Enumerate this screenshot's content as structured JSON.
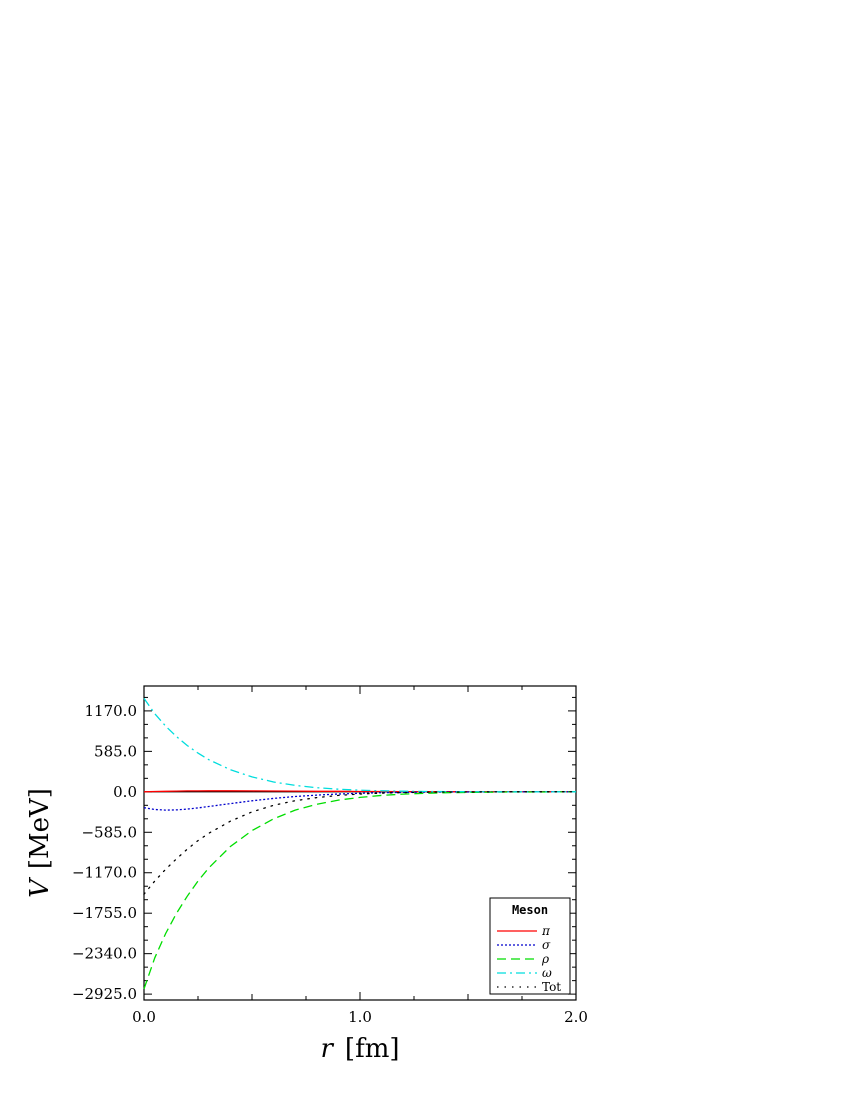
{
  "chart_data": {
    "type": "line",
    "xlabel_var": "r",
    "xlabel_unit": "[fm]",
    "ylabel_var": "V",
    "ylabel_unit": "[MeV]",
    "xlim": [
      0.0,
      2.0
    ],
    "ylim": [
      -3010,
      1530
    ],
    "xticks": [
      0.0,
      1.0,
      2.0
    ],
    "xtick_labels": [
      "0.0",
      "1.0",
      "2.0"
    ],
    "yticks": [
      1170.0,
      585.0,
      0.0,
      -585.0,
      -1170.0,
      -1755.0,
      -2340.0,
      -2925.0
    ],
    "ytick_labels": [
      "1170.0",
      "585.0",
      "0.0",
      "−585.0",
      "−1170.0",
      "−1755.0",
      "−2340.0",
      "−2925.0"
    ],
    "grid": false,
    "legend_title": "Meson",
    "legend_position": "bottom-right",
    "x": [
      0.0,
      0.05,
      0.1,
      0.15,
      0.2,
      0.25,
      0.3,
      0.4,
      0.5,
      0.6,
      0.7,
      0.8,
      0.9,
      1.0,
      1.1,
      1.2,
      1.3,
      1.4,
      1.5,
      1.6,
      1.7,
      1.8,
      1.9,
      2.0
    ],
    "series": [
      {
        "name": "π",
        "color": "#ff0000",
        "style": "solid",
        "values": [
          0,
          4,
          8,
          11,
          13,
          14,
          15,
          15,
          14,
          12,
          10,
          8,
          7,
          5,
          4,
          3,
          2,
          2,
          1,
          1,
          1,
          0,
          0,
          0
        ]
      },
      {
        "name": "σ",
        "color": "#0000cc",
        "style": "dotted",
        "values": [
          -230,
          -255,
          -265,
          -262,
          -250,
          -232,
          -212,
          -170,
          -130,
          -95,
          -68,
          -47,
          -32,
          -21,
          -13,
          -8,
          -5,
          -3,
          -2,
          -1,
          -1,
          0,
          0,
          0
        ]
      },
      {
        "name": "ρ",
        "color": "#00dd00",
        "style": "dashed",
        "values": [
          -2850,
          -2400,
          -2050,
          -1760,
          -1510,
          -1290,
          -1100,
          -790,
          -560,
          -390,
          -265,
          -180,
          -120,
          -80,
          -52,
          -33,
          -21,
          -13,
          -8,
          -5,
          -3,
          -2,
          -1,
          0
        ]
      },
      {
        "name": "ω",
        "color": "#00dddd",
        "style": "dashdot",
        "values": [
          1350,
          1130,
          950,
          800,
          670,
          560,
          465,
          320,
          215,
          142,
          93,
          60,
          38,
          24,
          15,
          9,
          5,
          3,
          2,
          1,
          1,
          0,
          0,
          0
        ]
      },
      {
        "name": "Tot",
        "color": "#000000",
        "style": "loosedot",
        "values": [
          -1480,
          -1290,
          -1120,
          -970,
          -830,
          -705,
          -600,
          -425,
          -290,
          -195,
          -128,
          -83,
          -52,
          -32,
          -19,
          -11,
          -6,
          -3,
          -2,
          -1,
          0,
          0,
          0,
          0
        ]
      }
    ]
  }
}
